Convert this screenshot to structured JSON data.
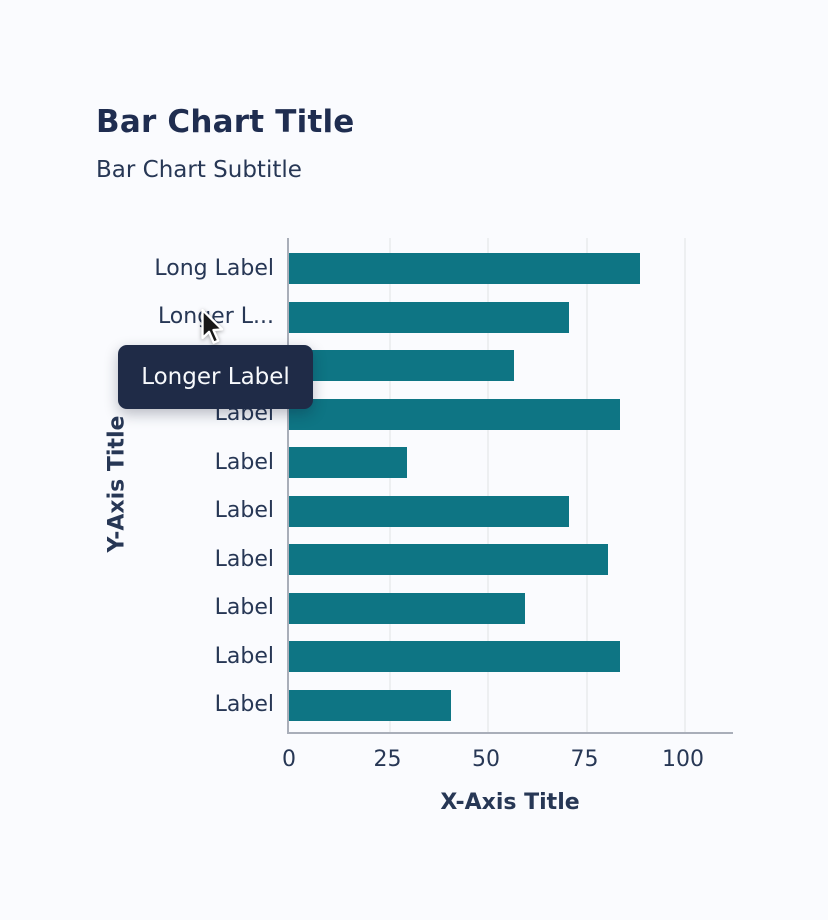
{
  "header": {
    "title": "Bar Chart Title",
    "subtitle": "Bar Chart Subtitle"
  },
  "chart_data": {
    "type": "bar",
    "orientation": "horizontal",
    "title": "Bar Chart Title",
    "subtitle": "Bar Chart Subtitle",
    "xlabel": "X-Axis Title",
    "ylabel": "Y-Axis Title",
    "categories": [
      "Long Label",
      "Longer L...",
      "Label",
      "Label",
      "Label",
      "Label",
      "Label",
      "Label",
      "Label",
      "Label"
    ],
    "values": [
      89,
      71,
      57,
      84,
      30,
      71,
      81,
      60,
      84,
      41
    ],
    "xticks": [
      0,
      25,
      50,
      75,
      100
    ],
    "xlim": [
      0,
      113
    ],
    "grid": "vertical",
    "legend": "none",
    "bar_color": "#0e7584"
  },
  "tooltip": {
    "visible": true,
    "text": "Longer Label",
    "bg_color": "#1f2b47",
    "text_color": "#f7f9fc"
  },
  "colors": {
    "background": "#fafbfe",
    "text": "#273755",
    "title_text": "#1f2d50",
    "axis_line": "#a9aeb9",
    "gridline": "#edeff1"
  }
}
